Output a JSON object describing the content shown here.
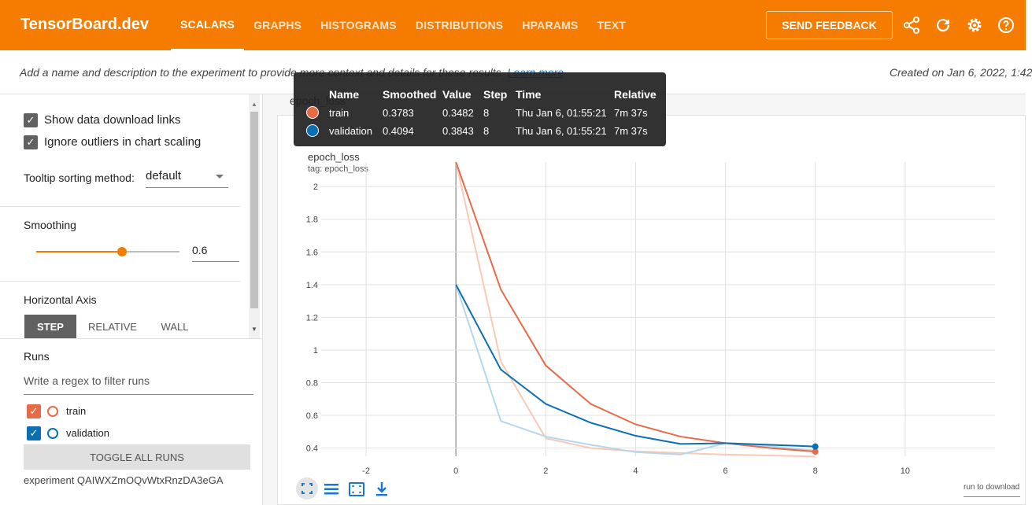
{
  "topbar": {
    "brand": "TensorBoard.dev",
    "tabs": [
      "SCALARS",
      "GRAPHS",
      "HISTOGRAMS",
      "DISTRIBUTIONS",
      "HPARAMS",
      "TEXT"
    ],
    "active_tab": "SCALARS",
    "feedback_label": "SEND FEEDBACK",
    "icons": [
      "share-icon",
      "refresh-icon",
      "settings-icon",
      "help-icon"
    ],
    "accent_color": "#f57c00"
  },
  "description": {
    "text": "Add a name and description to the experiment to provide more context and details for these results.",
    "link": "Learn more",
    "created": "Created on Jan 6, 2022, 1:42"
  },
  "sidebar": {
    "show_download_links": "Show data download links",
    "ignore_outliers": "Ignore outliers in chart scaling",
    "tooltip_sort_label": "Tooltip sorting method:",
    "tooltip_sort_value": "default",
    "smoothing_label": "Smoothing",
    "smoothing_value": "0.6",
    "smoothing_level": 0.6,
    "horizontal_axis_label": "Horizontal Axis",
    "axis_options": [
      "STEP",
      "RELATIVE",
      "WALL"
    ],
    "axis_selected": "STEP",
    "runs_label": "Runs",
    "filter_placeholder": "Write a regex to filter runs",
    "runs": [
      {
        "name": "train",
        "color": "#e86b47",
        "checked": true
      },
      {
        "name": "validation",
        "color": "#0a6fb3",
        "checked": true
      }
    ],
    "toggle_all": "TOGGLE ALL RUNS",
    "experiment": "experiment QAIWXZmOQvWtxRnzDA3eGA"
  },
  "main": {
    "group_header": "epoch_loss",
    "card_title": "epoch_loss",
    "card_tag": "tag: epoch_loss",
    "run_to_download": "run to download"
  },
  "tooltip": {
    "headers": [
      "Name",
      "Smoothed",
      "Value",
      "Step",
      "Time",
      "Relative"
    ],
    "rows": [
      {
        "name": "train",
        "smoothed": "0.3783",
        "value": "0.3482",
        "step": "8",
        "time": "Thu Jan 6, 01:55:21",
        "relative": "7m 37s",
        "color": "#e86b47"
      },
      {
        "name": "validation",
        "smoothed": "0.4094",
        "value": "0.3843",
        "step": "8",
        "time": "Thu Jan 6, 01:55:21",
        "relative": "7m 37s",
        "color": "#0a6fb3"
      }
    ]
  },
  "chart_data": {
    "type": "line",
    "title": "epoch_loss",
    "xlim": [
      -3,
      12
    ],
    "ylim": [
      0.35,
      2.15
    ],
    "x_ticks": [
      -2,
      0,
      2,
      4,
      6,
      8,
      10
    ],
    "y_ticks": [
      0.4,
      0.6,
      0.8,
      1,
      1.2,
      1.4,
      1.6,
      1.8,
      2
    ],
    "series": [
      {
        "name": "train",
        "color": "#e86b47",
        "x": [
          0,
          1,
          2,
          3,
          4,
          5,
          6,
          7,
          8
        ],
        "smoothed": [
          2.15,
          1.37,
          0.905,
          0.67,
          0.545,
          0.47,
          0.43,
          0.4,
          0.3783
        ],
        "raw": [
          2.15,
          0.93,
          0.46,
          0.4,
          0.38,
          0.37,
          0.36,
          0.355,
          0.3482
        ]
      },
      {
        "name": "validation",
        "color": "#0a6fb3",
        "x": [
          0,
          1,
          2,
          3,
          4,
          5,
          6,
          7,
          8
        ],
        "smoothed": [
          1.4,
          0.88,
          0.67,
          0.555,
          0.475,
          0.425,
          0.43,
          0.42,
          0.4094
        ],
        "raw": [
          1.4,
          0.565,
          0.47,
          0.42,
          0.375,
          0.36,
          0.43,
          0.41,
          0.3843
        ]
      }
    ]
  }
}
